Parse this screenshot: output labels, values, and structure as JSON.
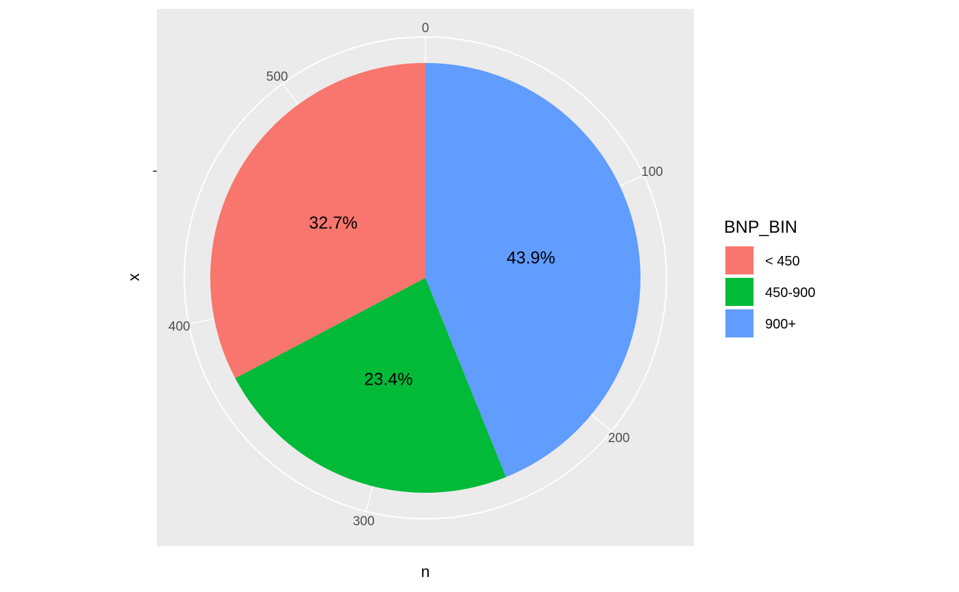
{
  "chart_data": {
    "type": "pie",
    "coord": "polar",
    "start_angle": "top",
    "direction": "clockwise",
    "xlabel": "n",
    "ylabel": "x",
    "y_tick_label": "-",
    "angle_axis": {
      "min": 0,
      "max": 556,
      "ticks": [
        0,
        100,
        200,
        300,
        400,
        500
      ]
    },
    "grid": true,
    "legend": {
      "title": "BNP_BIN",
      "placement": "right"
    },
    "slices": [
      {
        "label": "900+",
        "value": 244,
        "percent_label": "43.9%",
        "color": "#619CFF"
      },
      {
        "label": "450-900",
        "value": 130,
        "percent_label": "23.4%",
        "color": "#00BA38"
      },
      {
        "label": "< 450",
        "value": 182,
        "percent_label": "32.7%",
        "color": "#F8766D"
      }
    ],
    "legend_order": [
      "< 450",
      "450-900",
      "900+"
    ]
  },
  "colors": {
    "panel_background": "#EBEBEB",
    "grid_line": "#FFFFFF",
    "tick_text": "#4D4D4D"
  }
}
